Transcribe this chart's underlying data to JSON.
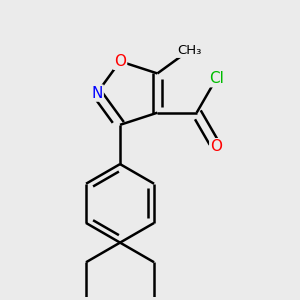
{
  "bg_color": "#ebebeb",
  "bond_color": "#000000",
  "bond_width": 1.8,
  "atom_colors": {
    "O": "#ff0000",
    "N": "#0000ff",
    "Cl": "#00bb00",
    "C": "#000000"
  },
  "font_size": 10
}
